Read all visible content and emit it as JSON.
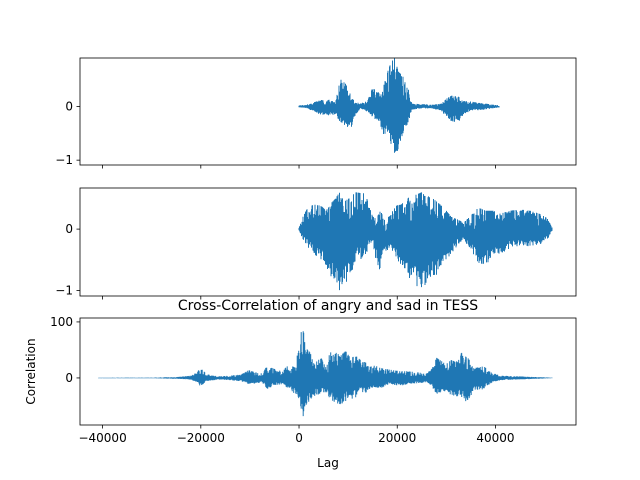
{
  "chart_data": [
    {
      "type": "line",
      "title": "",
      "xlabel": "",
      "ylabel": "",
      "xlim": [
        -44600,
        56400
      ],
      "ylim": [
        -1.09,
        0.9
      ],
      "xticks": [
        -40000,
        -20000,
        0,
        20000,
        40000
      ],
      "yticks": [
        0,
        -1
      ],
      "ytick_labels": [
        "0",
        "−1"
      ],
      "show_xtick_labels": false,
      "grid": false,
      "color": "#1f77b4",
      "x_range": [
        0,
        40800
      ],
      "envelope": [
        [
          0,
          0.02,
          -0.02
        ],
        [
          1500,
          0.03,
          -0.03
        ],
        [
          2500,
          0.06,
          -0.08
        ],
        [
          3500,
          0.09,
          -0.12
        ],
        [
          4500,
          0.12,
          -0.16
        ],
        [
          5500,
          0.1,
          -0.15
        ],
        [
          6500,
          0.14,
          -0.18
        ],
        [
          7500,
          0.1,
          -0.14
        ],
        [
          8000,
          0.34,
          -0.25
        ],
        [
          8500,
          0.5,
          -0.32
        ],
        [
          9500,
          0.42,
          -0.4
        ],
        [
          10500,
          0.26,
          -0.45
        ],
        [
          11200,
          0.1,
          -0.2
        ],
        [
          12500,
          0.05,
          -0.05
        ],
        [
          14000,
          0.12,
          -0.1
        ],
        [
          15000,
          0.35,
          -0.2
        ],
        [
          16000,
          0.25,
          -0.28
        ],
        [
          17000,
          0.3,
          -0.55
        ],
        [
          18200,
          0.7,
          -0.5
        ],
        [
          19000,
          0.85,
          -0.85
        ],
        [
          19500,
          0.9,
          -1.0
        ],
        [
          20200,
          0.65,
          -0.8
        ],
        [
          21000,
          0.58,
          -0.55
        ],
        [
          22000,
          0.42,
          -0.38
        ],
        [
          23000,
          0.05,
          -0.06
        ],
        [
          25500,
          0.04,
          -0.04
        ],
        [
          27000,
          0.03,
          -0.04
        ],
        [
          29000,
          0.05,
          -0.08
        ],
        [
          30000,
          0.14,
          -0.22
        ],
        [
          31000,
          0.2,
          -0.28
        ],
        [
          32500,
          0.18,
          -0.3
        ],
        [
          33500,
          0.1,
          -0.16
        ],
        [
          35000,
          0.09,
          -0.08
        ],
        [
          37000,
          0.06,
          -0.07
        ],
        [
          39000,
          0.04,
          -0.04
        ],
        [
          40800,
          0.02,
          -0.02
        ]
      ]
    },
    {
      "type": "line",
      "title": "",
      "xlabel": "",
      "ylabel": "",
      "xlim": [
        -44600,
        56400
      ],
      "ylim": [
        -1.09,
        0.67
      ],
      "xticks": [
        -40000,
        -20000,
        0,
        20000,
        40000
      ],
      "yticks": [
        0,
        -1
      ],
      "ytick_labels": [
        "0",
        "−1"
      ],
      "show_xtick_labels": false,
      "grid": false,
      "color": "#1f77b4",
      "x_range": [
        0,
        51600
      ],
      "envelope": [
        [
          0,
          0.02,
          -0.02
        ],
        [
          800,
          0.2,
          -0.18
        ],
        [
          1800,
          0.35,
          -0.3
        ],
        [
          3000,
          0.4,
          -0.4
        ],
        [
          4500,
          0.38,
          -0.5
        ],
        [
          5500,
          0.3,
          -0.65
        ],
        [
          6500,
          0.42,
          -0.8
        ],
        [
          7500,
          0.5,
          -0.92
        ],
        [
          8200,
          0.6,
          -1.0
        ],
        [
          9200,
          0.45,
          -0.92
        ],
        [
          10200,
          0.5,
          -0.8
        ],
        [
          11500,
          0.6,
          -0.55
        ],
        [
          13500,
          0.58,
          -0.45
        ],
        [
          14200,
          0.4,
          -0.3
        ],
        [
          15000,
          0.2,
          -0.2
        ],
        [
          15800,
          0.18,
          -0.6
        ],
        [
          16600,
          0.3,
          -0.7
        ],
        [
          17400,
          0.15,
          -0.4
        ],
        [
          18600,
          0.22,
          -0.3
        ],
        [
          19600,
          0.38,
          -0.48
        ],
        [
          20800,
          0.4,
          -0.6
        ],
        [
          22000,
          0.5,
          -0.75
        ],
        [
          23500,
          0.55,
          -0.92
        ],
        [
          25000,
          0.6,
          -0.95
        ],
        [
          26500,
          0.55,
          -0.9
        ],
        [
          28000,
          0.45,
          -0.75
        ],
        [
          29500,
          0.35,
          -0.55
        ],
        [
          31000,
          0.2,
          -0.4
        ],
        [
          32500,
          0.15,
          -0.25
        ],
        [
          33500,
          0.1,
          -0.15
        ],
        [
          35000,
          0.22,
          -0.4
        ],
        [
          36500,
          0.35,
          -0.55
        ],
        [
          38000,
          0.3,
          -0.6
        ],
        [
          39500,
          0.3,
          -0.42
        ],
        [
          41000,
          0.25,
          -0.4
        ],
        [
          43000,
          0.3,
          -0.32
        ],
        [
          45000,
          0.32,
          -0.28
        ],
        [
          47000,
          0.3,
          -0.28
        ],
        [
          49000,
          0.25,
          -0.25
        ],
        [
          50500,
          0.18,
          -0.18
        ],
        [
          51600,
          0.02,
          -0.02
        ]
      ]
    },
    {
      "type": "line",
      "title": "Cross-Correlation of angry and sad in TESS",
      "xlabel": "Lag",
      "ylabel": "Correlation",
      "xlim": [
        -44600,
        56400
      ],
      "ylim": [
        -84,
        107
      ],
      "xticks": [
        -40000,
        -20000,
        0,
        20000,
        40000
      ],
      "xtick_labels": [
        "−40000",
        "−20000",
        "0",
        "20000",
        "40000"
      ],
      "yticks": [
        100,
        0
      ],
      "ytick_labels": [
        "100",
        "0"
      ],
      "show_xtick_labels": true,
      "grid": false,
      "color": "#1f77b4",
      "x_range": [
        -40800,
        51600
      ],
      "envelope": [
        [
          -40800,
          0.5,
          -0.5
        ],
        [
          -30000,
          0.6,
          -0.6
        ],
        [
          -25000,
          1.5,
          -1.5
        ],
        [
          -22000,
          4,
          -3
        ],
        [
          -20800,
          10,
          -8
        ],
        [
          -20000,
          18,
          -16
        ],
        [
          -19000,
          8,
          -6
        ],
        [
          -17500,
          4,
          -4
        ],
        [
          -16000,
          3,
          -3
        ],
        [
          -14000,
          4,
          -4
        ],
        [
          -12000,
          6,
          -6
        ],
        [
          -11000,
          10,
          -8
        ],
        [
          -10200,
          14,
          -12
        ],
        [
          -9000,
          10,
          -10
        ],
        [
          -7500,
          8,
          -8
        ],
        [
          -6500,
          22,
          -20
        ],
        [
          -5000,
          16,
          -14
        ],
        [
          -3500,
          12,
          -12
        ],
        [
          -2000,
          24,
          -20
        ],
        [
          -800,
          18,
          -30
        ],
        [
          200,
          70,
          -40
        ],
        [
          700,
          95,
          -80
        ],
        [
          1300,
          60,
          -55
        ],
        [
          2200,
          45,
          -40
        ],
        [
          3500,
          30,
          -30
        ],
        [
          4500,
          35,
          -30
        ],
        [
          5500,
          25,
          -25
        ],
        [
          6500,
          50,
          -40
        ],
        [
          7500,
          45,
          -45
        ],
        [
          8500,
          40,
          -50
        ],
        [
          9500,
          48,
          -42
        ],
        [
          10500,
          35,
          -40
        ],
        [
          11500,
          40,
          -35
        ],
        [
          12500,
          32,
          -25
        ],
        [
          13500,
          28,
          -30
        ],
        [
          14500,
          20,
          -18
        ],
        [
          15500,
          22,
          -20
        ],
        [
          16500,
          18,
          -22
        ],
        [
          17500,
          16,
          -14
        ],
        [
          19000,
          14,
          -12
        ],
        [
          20500,
          12,
          -14
        ],
        [
          22000,
          12,
          -12
        ],
        [
          24000,
          10,
          -10
        ],
        [
          26000,
          8,
          -8
        ],
        [
          27000,
          16,
          -14
        ],
        [
          28000,
          36,
          -30
        ],
        [
          29000,
          30,
          -25
        ],
        [
          30000,
          25,
          -28
        ],
        [
          31000,
          32,
          -30
        ],
        [
          32000,
          28,
          -35
        ],
        [
          32800,
          42,
          -30
        ],
        [
          33500,
          48,
          -40
        ],
        [
          34500,
          34,
          -45
        ],
        [
          35500,
          24,
          -20
        ],
        [
          36500,
          18,
          -22
        ],
        [
          37500,
          22,
          -20
        ],
        [
          39000,
          10,
          -10
        ],
        [
          41000,
          4,
          -4
        ],
        [
          44000,
          3,
          -3
        ],
        [
          47000,
          2,
          -2
        ],
        [
          51600,
          0.5,
          -0.5
        ]
      ]
    }
  ]
}
